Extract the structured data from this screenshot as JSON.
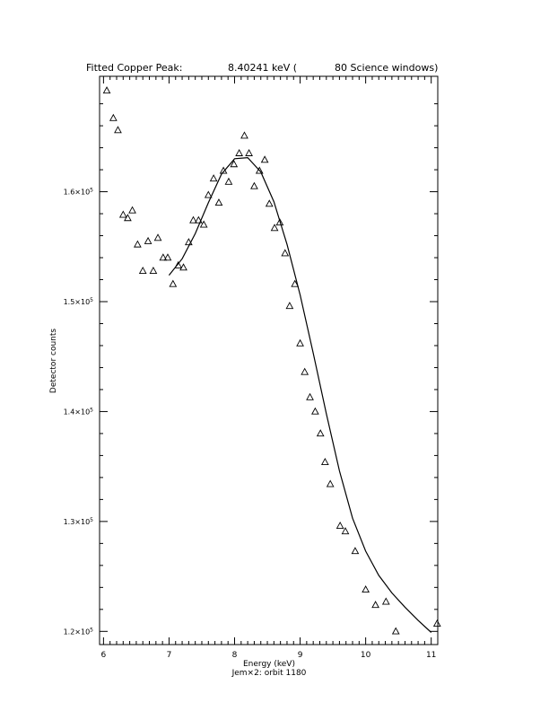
{
  "chart_data": {
    "type": "scatter",
    "title_parts": [
      "Fitted Copper Peak:",
      "8.40241 keV (",
      "80 Science windows)"
    ],
    "xlabel": "Energy (keV)",
    "subtitle": "Jem×2: orbit 1180",
    "ylabel": "Detector counts",
    "xlim": [
      5.94,
      11.1
    ],
    "ylim": [
      118800,
      170500
    ],
    "x_ticks": [
      6,
      7,
      8,
      9,
      10,
      11
    ],
    "y_ticks": [
      {
        "value": 120000,
        "mantissa": "1.2×10",
        "exp": "5"
      },
      {
        "value": 130000,
        "mantissa": "1.3×10",
        "exp": "5"
      },
      {
        "value": 140000,
        "mantissa": "1.4×10",
        "exp": "5"
      },
      {
        "value": 150000,
        "mantissa": "1.5×10",
        "exp": "5"
      },
      {
        "value": 160000,
        "mantissa": "1.6×10",
        "exp": "5"
      }
    ],
    "grid": false,
    "series": [
      {
        "marker": "triangle-open",
        "points": [
          [
            6.05,
            169200
          ],
          [
            6.15,
            166700
          ],
          [
            6.22,
            165600
          ],
          [
            6.3,
            157900
          ],
          [
            6.37,
            157600
          ],
          [
            6.44,
            158300
          ],
          [
            6.52,
            155200
          ],
          [
            6.6,
            152800
          ],
          [
            6.68,
            155500
          ],
          [
            6.76,
            152800
          ],
          [
            6.83,
            155800
          ],
          [
            6.91,
            154000
          ],
          [
            6.98,
            154000
          ],
          [
            7.06,
            151600
          ],
          [
            7.14,
            153300
          ],
          [
            7.22,
            153100
          ],
          [
            7.3,
            155400
          ],
          [
            7.37,
            157400
          ],
          [
            7.45,
            157400
          ],
          [
            7.53,
            157000
          ],
          [
            7.6,
            159700
          ],
          [
            7.68,
            161200
          ],
          [
            7.76,
            159000
          ],
          [
            7.83,
            161900
          ],
          [
            7.91,
            160900
          ],
          [
            7.99,
            162500
          ],
          [
            8.07,
            163500
          ],
          [
            8.15,
            165100
          ],
          [
            8.22,
            163500
          ],
          [
            8.3,
            160500
          ],
          [
            8.38,
            161900
          ],
          [
            8.46,
            162900
          ],
          [
            8.53,
            158900
          ],
          [
            8.61,
            156700
          ],
          [
            8.69,
            157200
          ],
          [
            8.77,
            154400
          ],
          [
            8.84,
            149600
          ],
          [
            8.92,
            151600
          ],
          [
            9.0,
            146200
          ],
          [
            9.07,
            143600
          ],
          [
            9.15,
            141300
          ],
          [
            9.23,
            140000
          ],
          [
            9.31,
            138000
          ],
          [
            9.38,
            135400
          ],
          [
            9.46,
            133400
          ],
          [
            9.61,
            129600
          ],
          [
            9.69,
            129100
          ],
          [
            9.84,
            127300
          ],
          [
            10.0,
            123800
          ],
          [
            10.15,
            122400
          ],
          [
            10.31,
            122700
          ],
          [
            10.46,
            120000
          ],
          [
            11.09,
            120700
          ]
        ]
      },
      {
        "marker": "line",
        "points": [
          [
            7.0,
            152400
          ],
          [
            7.2,
            153900
          ],
          [
            7.4,
            156200
          ],
          [
            7.6,
            159000
          ],
          [
            7.8,
            161600
          ],
          [
            8.0,
            163000
          ],
          [
            8.2,
            163100
          ],
          [
            8.4,
            161800
          ],
          [
            8.6,
            159100
          ],
          [
            8.8,
            155200
          ],
          [
            9.0,
            150600
          ],
          [
            9.2,
            145300
          ],
          [
            9.4,
            139800
          ],
          [
            9.6,
            134600
          ],
          [
            9.8,
            130300
          ],
          [
            10.0,
            127300
          ],
          [
            10.2,
            125100
          ],
          [
            10.4,
            123500
          ],
          [
            10.6,
            122200
          ],
          [
            10.8,
            121000
          ],
          [
            11.0,
            119900
          ]
        ]
      }
    ]
  }
}
